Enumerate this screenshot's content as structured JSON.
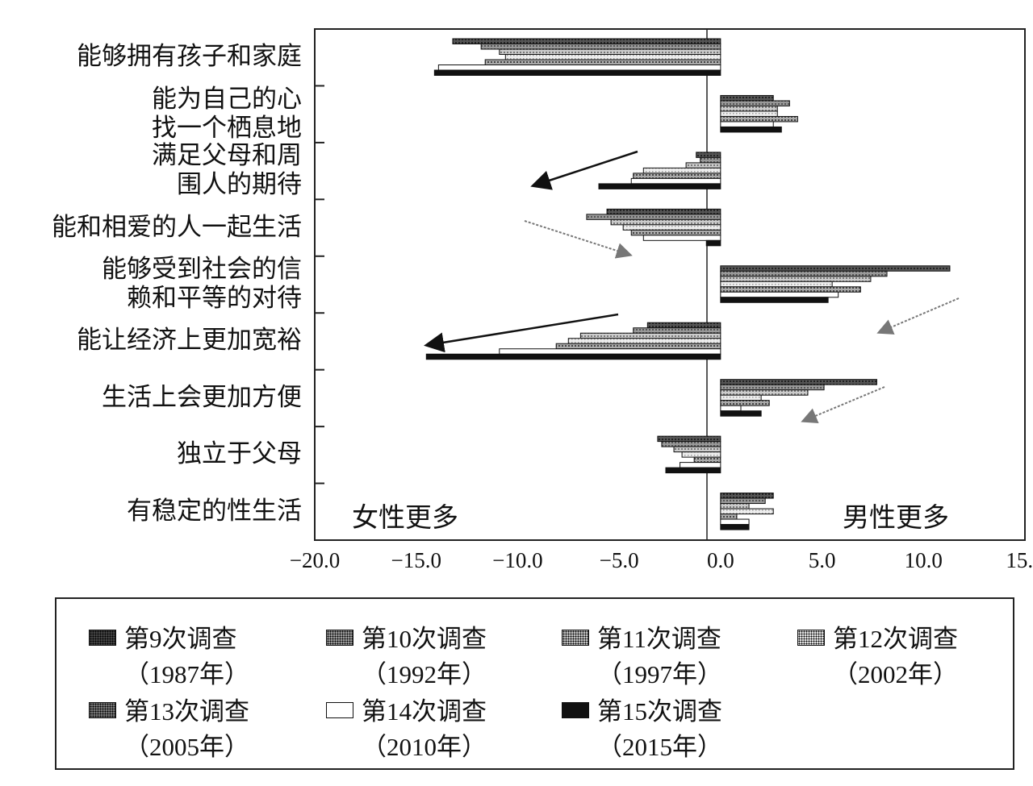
{
  "chart_data": {
    "type": "bar",
    "orientation": "horizontal",
    "categories": [
      {
        "lines": [
          "能够拥有孩子和家庭"
        ]
      },
      {
        "lines": [
          "能为自己的心",
          "找一个栖息地"
        ]
      },
      {
        "lines": [
          "满足父母和周",
          "围人的期待"
        ]
      },
      {
        "lines": [
          "能和相爱的人一起生活"
        ]
      },
      {
        "lines": [
          "能够受到社会的信",
          "赖和平等的对待"
        ]
      },
      {
        "lines": [
          "能让经济上更加宽裕"
        ]
      },
      {
        "lines": [
          "生活上会更加方便"
        ]
      },
      {
        "lines": [
          "独立于父母"
        ]
      },
      {
        "lines": [
          "有稳定的性生活"
        ]
      }
    ],
    "series": [
      {
        "name": "第9次调查",
        "year": "（1987年）",
        "color": "#3a3a3a",
        "values": [
          -13.2,
          2.6,
          -1.2,
          -5.6,
          11.3,
          -3.6,
          7.7,
          -3.1,
          2.6
        ]
      },
      {
        "name": "第10次调查",
        "year": "（1992年）",
        "color": "#707070",
        "values": [
          -11.8,
          3.4,
          -1.0,
          -6.6,
          8.2,
          -4.3,
          5.1,
          -2.9,
          2.2
        ]
      },
      {
        "name": "第11次调查",
        "year": "（1997年）",
        "color": "#9a9a9a",
        "values": [
          -10.9,
          2.8,
          -1.7,
          -5.4,
          7.4,
          -6.9,
          4.3,
          -2.3,
          1.4
        ]
      },
      {
        "name": "第12次调查",
        "year": "（2002年）",
        "color": "#c4c4c4",
        "values": [
          -10.6,
          2.8,
          -3.8,
          -4.8,
          5.5,
          -7.5,
          2.0,
          -1.9,
          2.6
        ]
      },
      {
        "name": "第13次调查",
        "year": "（2005年）",
        "color": "#8a8a8a",
        "values": [
          -11.6,
          3.8,
          -4.3,
          -4.4,
          6.9,
          -8.1,
          2.4,
          -1.3,
          0.8
        ]
      },
      {
        "name": "第14次调查",
        "year": "（2010年）",
        "color": "#ffffff",
        "values": [
          -13.9,
          2.6,
          -4.4,
          -3.8,
          5.8,
          -10.9,
          1.0,
          -2.0,
          1.4
        ]
      },
      {
        "name": "第15次调查",
        "year": "（2015年）",
        "color": "#111111",
        "values": [
          -14.1,
          3.0,
          -6.0,
          -0.7,
          5.3,
          -14.5,
          2.0,
          -2.7,
          1.4
        ]
      }
    ],
    "xlim": [
      -20,
      15
    ],
    "xticks": [
      "−20.0",
      "−15.0",
      "−10.0",
      "−5.0",
      "0.0",
      "5.0",
      "10.0",
      "15.0"
    ],
    "annotations": {
      "left": "女性更多",
      "right": "男性更多"
    },
    "grid": false,
    "legend_position": "bottom"
  }
}
